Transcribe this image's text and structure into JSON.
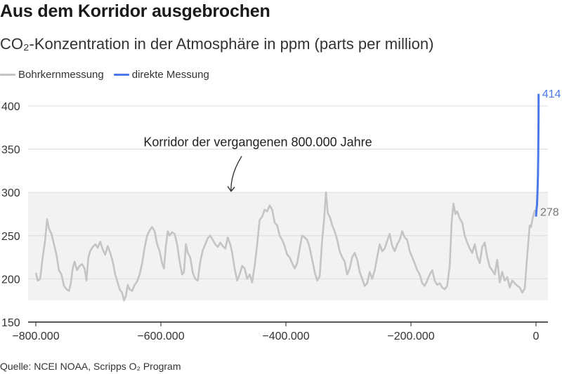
{
  "chart_data": {
    "type": "line",
    "title": "Aus dem Korridor ausgebrochen",
    "subtitle": "CO₂-Konzentration in der Atmosphäre in ppm (parts per million)",
    "source": "Quelle: NCEI NOAA, Scripps O₂ Program",
    "xlim": [
      -810000,
      15000
    ],
    "ylim": [
      150,
      430
    ],
    "x_ticks": [
      -800000,
      -600000,
      -400000,
      -200000,
      0
    ],
    "x_tick_labels": [
      "−800.000",
      "−600.000",
      "−400.000",
      "−200.000",
      "0"
    ],
    "y_ticks": [
      150,
      200,
      250,
      300,
      350,
      400
    ],
    "y_tick_labels": [
      "150",
      "200",
      "250",
      "300",
      "350",
      "400"
    ],
    "corridor": {
      "y0": 175,
      "y1": 300
    },
    "annotation": {
      "text": "Korridor der vergangenen 800.000 Jahre",
      "x": -482000,
      "y": 320
    },
    "series": [
      {
        "name": "Bohrkernmessung",
        "color": "#c4c4c4",
        "end_label": "278",
        "points": [
          [
            -800000,
            207
          ],
          [
            -797000,
            198
          ],
          [
            -793000,
            200
          ],
          [
            -789000,
            225
          ],
          [
            -785000,
            245
          ],
          [
            -782000,
            269
          ],
          [
            -779000,
            258
          ],
          [
            -775000,
            252
          ],
          [
            -771000,
            240
          ],
          [
            -767000,
            228
          ],
          [
            -763000,
            210
          ],
          [
            -759000,
            205
          ],
          [
            -755000,
            192
          ],
          [
            -751000,
            188
          ],
          [
            -747000,
            186
          ],
          [
            -744000,
            195
          ],
          [
            -741000,
            212
          ],
          [
            -738000,
            220
          ],
          [
            -734000,
            210
          ],
          [
            -730000,
            215
          ],
          [
            -726000,
            217
          ],
          [
            -722000,
            212
          ],
          [
            -719000,
            198
          ],
          [
            -716000,
            225
          ],
          [
            -713000,
            232
          ],
          [
            -709000,
            237
          ],
          [
            -705000,
            240
          ],
          [
            -701000,
            236
          ],
          [
            -697000,
            243
          ],
          [
            -693000,
            234
          ],
          [
            -689000,
            228
          ],
          [
            -685000,
            238
          ],
          [
            -681000,
            230
          ],
          [
            -677000,
            220
          ],
          [
            -673000,
            205
          ],
          [
            -670000,
            198
          ],
          [
            -666000,
            188
          ],
          [
            -662000,
            184
          ],
          [
            -659000,
            175
          ],
          [
            -656000,
            180
          ],
          [
            -653000,
            193
          ],
          [
            -650000,
            188
          ],
          [
            -646000,
            186
          ],
          [
            -642000,
            193
          ],
          [
            -638000,
            197
          ],
          [
            -634000,
            205
          ],
          [
            -630000,
            218
          ],
          [
            -626000,
            236
          ],
          [
            -622000,
            250
          ],
          [
            -618000,
            256
          ],
          [
            -614000,
            260
          ],
          [
            -610000,
            255
          ],
          [
            -606000,
            240
          ],
          [
            -602000,
            232
          ],
          [
            -598000,
            218
          ],
          [
            -595000,
            212
          ],
          [
            -592000,
            238
          ],
          [
            -589000,
            255
          ],
          [
            -586000,
            250
          ],
          [
            -582000,
            254
          ],
          [
            -578000,
            252
          ],
          [
            -574000,
            240
          ],
          [
            -570000,
            220
          ],
          [
            -566000,
            205
          ],
          [
            -563000,
            208
          ],
          [
            -560000,
            240
          ],
          [
            -557000,
            230
          ],
          [
            -553000,
            225
          ],
          [
            -549000,
            207
          ],
          [
            -545000,
            200
          ],
          [
            -541000,
            198
          ],
          [
            -537000,
            220
          ],
          [
            -533000,
            233
          ],
          [
            -529000,
            240
          ],
          [
            -525000,
            247
          ],
          [
            -521000,
            250
          ],
          [
            -517000,
            245
          ],
          [
            -513000,
            240
          ],
          [
            -509000,
            237
          ],
          [
            -505000,
            242
          ],
          [
            -501000,
            238
          ],
          [
            -497000,
            235
          ],
          [
            -493000,
            248
          ],
          [
            -489000,
            240
          ],
          [
            -486000,
            230
          ],
          [
            -482000,
            212
          ],
          [
            -478000,
            198
          ],
          [
            -474000,
            205
          ],
          [
            -470000,
            215
          ],
          [
            -466000,
            212
          ],
          [
            -462000,
            200
          ],
          [
            -458000,
            205
          ],
          [
            -454000,
            196
          ],
          [
            -450000,
            215
          ],
          [
            -446000,
            240
          ],
          [
            -442000,
            268
          ],
          [
            -438000,
            272
          ],
          [
            -434000,
            280
          ],
          [
            -430000,
            278
          ],
          [
            -426000,
            285
          ],
          [
            -422000,
            280
          ],
          [
            -418000,
            265
          ],
          [
            -414000,
            262
          ],
          [
            -410000,
            250
          ],
          [
            -406000,
            245
          ],
          [
            -402000,
            238
          ],
          [
            -398000,
            228
          ],
          [
            -394000,
            225
          ],
          [
            -390000,
            218
          ],
          [
            -386000,
            212
          ],
          [
            -382000,
            218
          ],
          [
            -378000,
            235
          ],
          [
            -374000,
            250
          ],
          [
            -370000,
            248
          ],
          [
            -366000,
            245
          ],
          [
            -362000,
            236
          ],
          [
            -358000,
            222
          ],
          [
            -354000,
            208
          ],
          [
            -350000,
            198
          ],
          [
            -346000,
            203
          ],
          [
            -342000,
            245
          ],
          [
            -339000,
            268
          ],
          [
            -336000,
            300
          ],
          [
            -333000,
            276
          ],
          [
            -330000,
            272
          ],
          [
            -326000,
            262
          ],
          [
            -322000,
            255
          ],
          [
            -318000,
            245
          ],
          [
            -314000,
            232
          ],
          [
            -310000,
            225
          ],
          [
            -306000,
            220
          ],
          [
            -302000,
            205
          ],
          [
            -298000,
            212
          ],
          [
            -294000,
            225
          ],
          [
            -290000,
            230
          ],
          [
            -286000,
            222
          ],
          [
            -282000,
            208
          ],
          [
            -278000,
            200
          ],
          [
            -274000,
            192
          ],
          [
            -270000,
            195
          ],
          [
            -266000,
            208
          ],
          [
            -262000,
            200
          ],
          [
            -258000,
            210
          ],
          [
            -254000,
            225
          ],
          [
            -250000,
            240
          ],
          [
            -246000,
            232
          ],
          [
            -242000,
            235
          ],
          [
            -238000,
            244
          ],
          [
            -234000,
            252
          ],
          [
            -230000,
            238
          ],
          [
            -226000,
            232
          ],
          [
            -222000,
            240
          ],
          [
            -218000,
            245
          ],
          [
            -214000,
            255
          ],
          [
            -210000,
            248
          ],
          [
            -206000,
            245
          ],
          [
            -202000,
            232
          ],
          [
            -198000,
            225
          ],
          [
            -194000,
            218
          ],
          [
            -190000,
            210
          ],
          [
            -186000,
            205
          ],
          [
            -182000,
            195
          ],
          [
            -178000,
            192
          ],
          [
            -174000,
            198
          ],
          [
            -170000,
            205
          ],
          [
            -166000,
            210
          ],
          [
            -162000,
            198
          ],
          [
            -158000,
            193
          ],
          [
            -154000,
            195
          ],
          [
            -150000,
            190
          ],
          [
            -146000,
            188
          ],
          [
            -142000,
            192
          ],
          [
            -138000,
            215
          ],
          [
            -135000,
            265
          ],
          [
            -132000,
            287
          ],
          [
            -129000,
            275
          ],
          [
            -126000,
            278
          ],
          [
            -122000,
            270
          ],
          [
            -118000,
            265
          ],
          [
            -114000,
            250
          ],
          [
            -110000,
            242
          ],
          [
            -106000,
            235
          ],
          [
            -102000,
            230
          ],
          [
            -98000,
            240
          ],
          [
            -94000,
            226
          ],
          [
            -90000,
            218
          ],
          [
            -86000,
            237
          ],
          [
            -82000,
            242
          ],
          [
            -78000,
            225
          ],
          [
            -74000,
            214
          ],
          [
            -70000,
            210
          ],
          [
            -66000,
            205
          ],
          [
            -62000,
            222
          ],
          [
            -58000,
            196
          ],
          [
            -54000,
            208
          ],
          [
            -50000,
            198
          ],
          [
            -46000,
            202
          ],
          [
            -42000,
            190
          ],
          [
            -38000,
            198
          ],
          [
            -34000,
            195
          ],
          [
            -30000,
            192
          ],
          [
            -26000,
            190
          ],
          [
            -22000,
            184
          ],
          [
            -18000,
            189
          ],
          [
            -15000,
            218
          ],
          [
            -12000,
            245
          ],
          [
            -10000,
            262
          ],
          [
            -8000,
            260
          ],
          [
            -6000,
            268
          ],
          [
            -4000,
            274
          ],
          [
            -2000,
            279
          ],
          [
            0,
            278
          ]
        ]
      },
      {
        "name": "direkte Messung",
        "color": "#4a7ae8",
        "end_label": "414",
        "points": [
          [
            0,
            272
          ],
          [
            800,
            280
          ],
          [
            1600,
            285
          ],
          [
            2400,
            300
          ],
          [
            3200,
            320
          ],
          [
            3600,
            345
          ],
          [
            4000,
            385
          ],
          [
            4200,
            414
          ]
        ]
      }
    ]
  }
}
